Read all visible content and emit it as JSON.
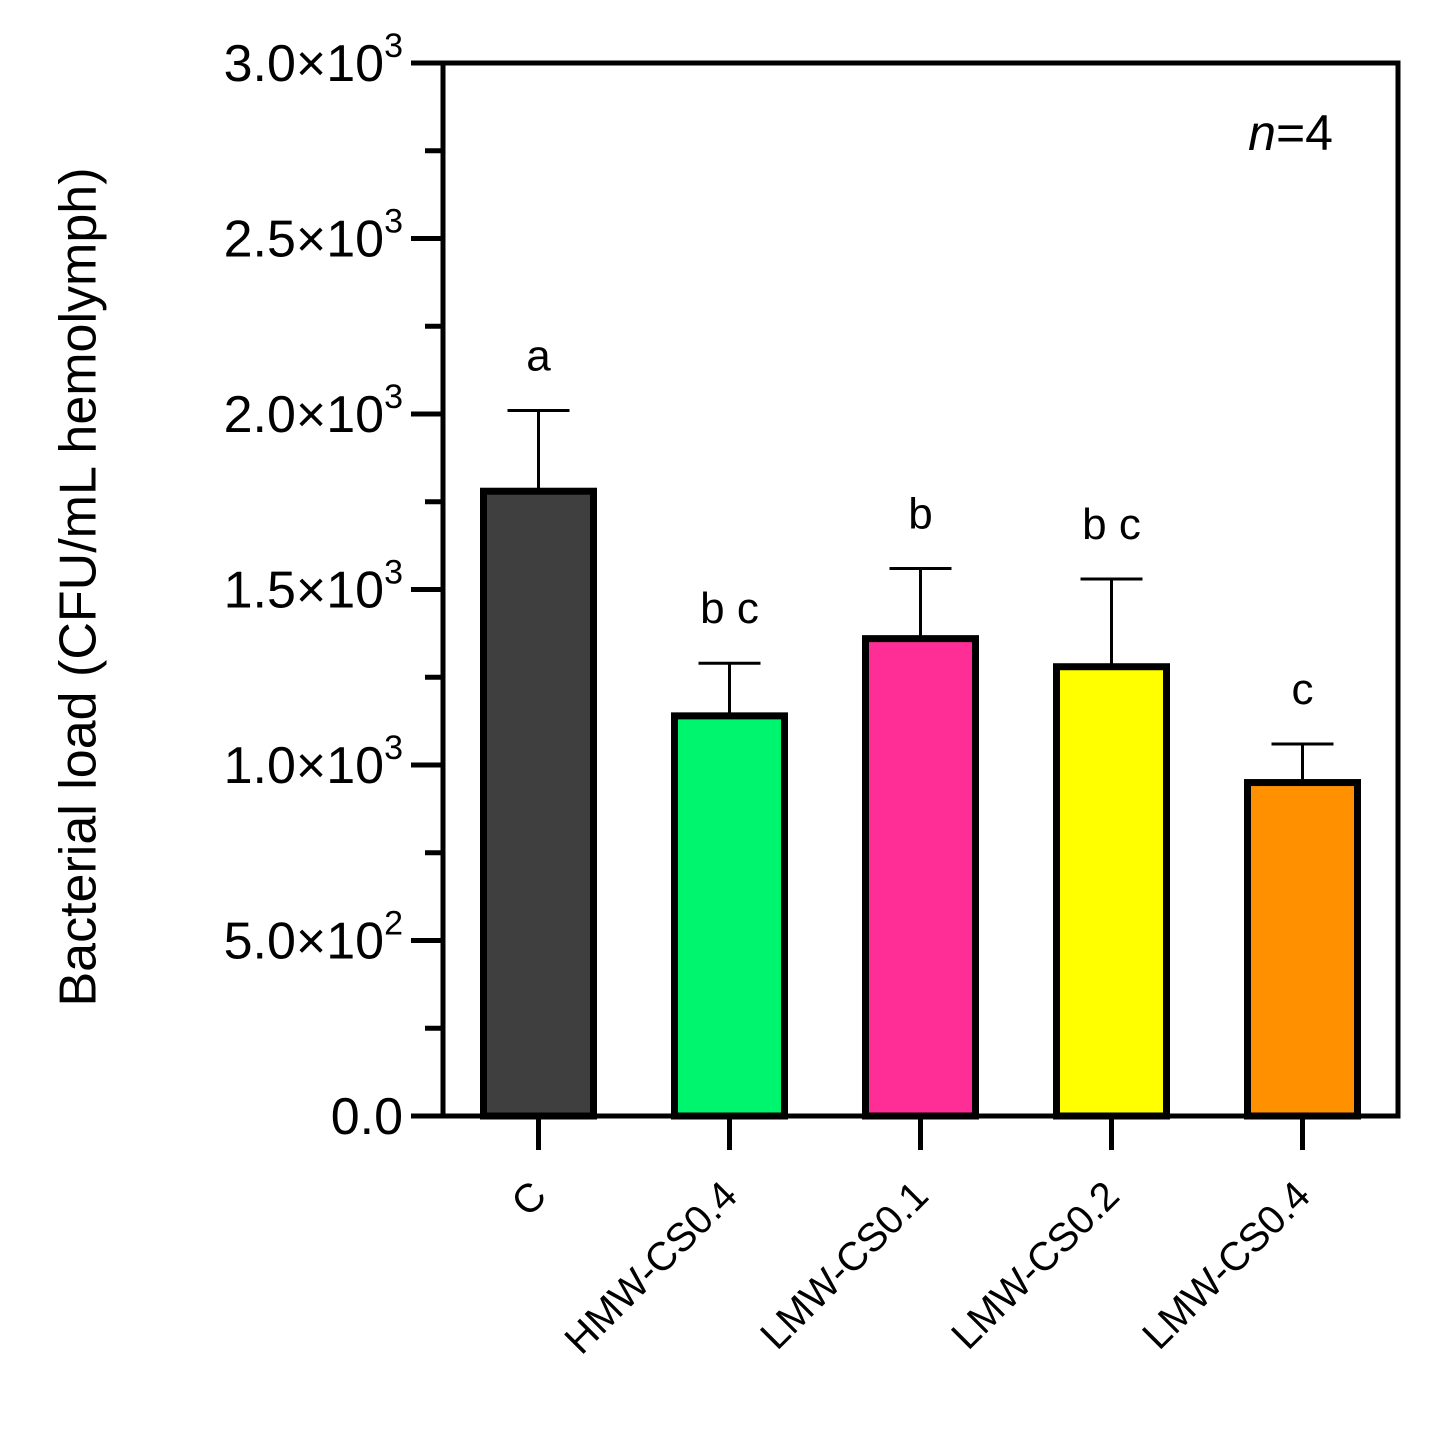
{
  "chart_data": {
    "type": "bar",
    "ylabel": "Bacterial load (CFU/mL hemolymph)",
    "annotation": {
      "italic": "n",
      "rest": "=4"
    },
    "ylim": [
      0,
      3000
    ],
    "y_ticks": [
      {
        "value": 0,
        "mantissa": "0.0",
        "exp": ""
      },
      {
        "value": 500,
        "mantissa": "5.0×10",
        "exp": "2"
      },
      {
        "value": 1000,
        "mantissa": "1.0×10",
        "exp": "3"
      },
      {
        "value": 1500,
        "mantissa": "1.5×10",
        "exp": "3"
      },
      {
        "value": 2000,
        "mantissa": "2.0×10",
        "exp": "3"
      },
      {
        "value": 2500,
        "mantissa": "2.5×10",
        "exp": "3"
      },
      {
        "value": 3000,
        "mantissa": "3.0×10",
        "exp": "3"
      }
    ],
    "categories": [
      "C",
      "HMW-CS0.4",
      "LMW-CS0.1",
      "LMW-CS0.2",
      "LMW-CS0.4"
    ],
    "values": [
      1780,
      1140,
      1360,
      1280,
      950
    ],
    "error_upper": [
      2010,
      1290,
      1560,
      1530,
      1060
    ],
    "significance": [
      "a",
      "b c",
      "b",
      "b c",
      "c"
    ],
    "colors": [
      "#3f3f3f",
      "#00f56e",
      "#ff2d96",
      "#ffff00",
      "#ff9000"
    ]
  }
}
